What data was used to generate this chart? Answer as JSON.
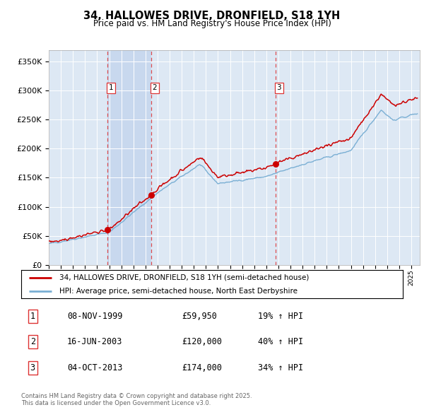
{
  "title": "34, HALLOWES DRIVE, DRONFIELD, S18 1YH",
  "subtitle": "Price paid vs. HM Land Registry's House Price Index (HPI)",
  "ylim": [
    0,
    370000
  ],
  "yticks": [
    0,
    50000,
    100000,
    150000,
    200000,
    250000,
    300000,
    350000
  ],
  "ytick_labels": [
    "£0",
    "£50K",
    "£100K",
    "£150K",
    "£200K",
    "£250K",
    "£300K",
    "£350K"
  ],
  "legend_line1": "34, HALLOWES DRIVE, DRONFIELD, S18 1YH (semi-detached house)",
  "legend_line2": "HPI: Average price, semi-detached house, North East Derbyshire",
  "transactions": [
    {
      "num": 1,
      "date": "08-NOV-1999",
      "price": "£59,950",
      "change": "19% ↑ HPI",
      "year": 1999.86
    },
    {
      "num": 2,
      "date": "16-JUN-2003",
      "price": "£120,000",
      "change": "40% ↑ HPI",
      "year": 2003.46
    },
    {
      "num": 3,
      "date": "04-OCT-2013",
      "price": "£174,000",
      "change": "34% ↑ HPI",
      "year": 2013.75
    }
  ],
  "transaction_prices": [
    59950,
    120000,
    174000
  ],
  "footer": "Contains HM Land Registry data © Crown copyright and database right 2025.\nThis data is licensed under the Open Government Licence v3.0.",
  "red_color": "#cc0000",
  "blue_color": "#7aafd4",
  "vline_color": "#dd3333",
  "background_color": "#dde8f4",
  "highlight_color": "#c8d8ee"
}
